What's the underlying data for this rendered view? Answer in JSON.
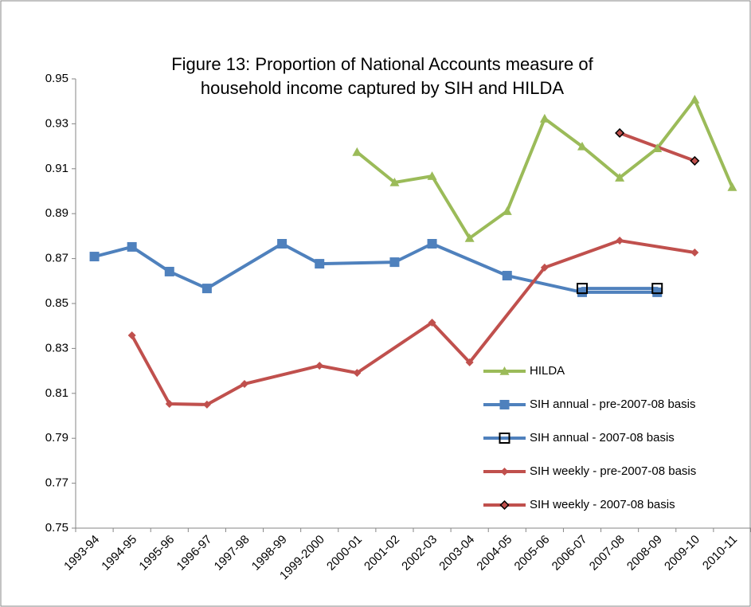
{
  "chart_data": {
    "type": "line",
    "title": [
      "Figure 13: Proportion of National Accounts measure of",
      "household income captured by SIH and HILDA"
    ],
    "categories": [
      "1993-94",
      "1994-95",
      "1995-96",
      "1996-97",
      "1997-98",
      "1998-99",
      "1999-2000",
      "2000-01",
      "2001-02",
      "2002-03",
      "2003-04",
      "2004-05",
      "2005-06",
      "2006-07",
      "2007-08",
      "2008-09",
      "2009-10",
      "2010-11"
    ],
    "series": [
      {
        "name": "HILDA",
        "color": "#9bbb59",
        "marker": "triangle",
        "values": [
          null,
          null,
          null,
          null,
          null,
          null,
          null,
          0.9174,
          0.9039,
          0.9067,
          0.8791,
          0.8911,
          0.9323,
          0.9199,
          0.906,
          0.9191,
          0.9408,
          0.9018
        ]
      },
      {
        "name": "SIH annual - pre-2007-08 basis",
        "color": "#4f81bd",
        "marker": "square",
        "values": [
          0.8709,
          0.8752,
          0.8642,
          0.8567,
          null,
          0.8766,
          0.8677,
          null,
          0.8684,
          0.8766,
          null,
          0.8624,
          null,
          0.855,
          null,
          0.855,
          null,
          null
        ]
      },
      {
        "name": "SIH annual - 2007-08 basis",
        "color": "#4f81bd",
        "marker": "hollow-square",
        "values": [
          null,
          null,
          null,
          null,
          null,
          null,
          null,
          null,
          null,
          null,
          null,
          null,
          null,
          0.8567,
          null,
          0.8567,
          null,
          null
        ]
      },
      {
        "name": "SIH weekly - pre-2007-08 basis",
        "color": "#c0504d",
        "marker": "diamond",
        "values": [
          null,
          0.8358,
          0.8053,
          0.805,
          0.8142,
          null,
          0.8223,
          0.8191,
          null,
          0.8415,
          0.8238,
          null,
          0.866,
          null,
          0.878,
          null,
          0.8727,
          null
        ]
      },
      {
        "name": "SIH weekly - 2007-08 basis",
        "color": "#c0504d",
        "marker": "outlined-diamond",
        "values": [
          null,
          null,
          null,
          null,
          null,
          null,
          null,
          null,
          null,
          null,
          null,
          null,
          null,
          null,
          0.9259,
          null,
          0.9135,
          null
        ]
      }
    ],
    "ylim": [
      0.75,
      0.95
    ],
    "yticks": [
      0.75,
      0.77,
      0.79,
      0.81,
      0.83,
      0.85,
      0.87,
      0.89,
      0.91,
      0.93,
      0.95
    ],
    "span_gaps": true,
    "grid": false,
    "legend_position": "right"
  }
}
